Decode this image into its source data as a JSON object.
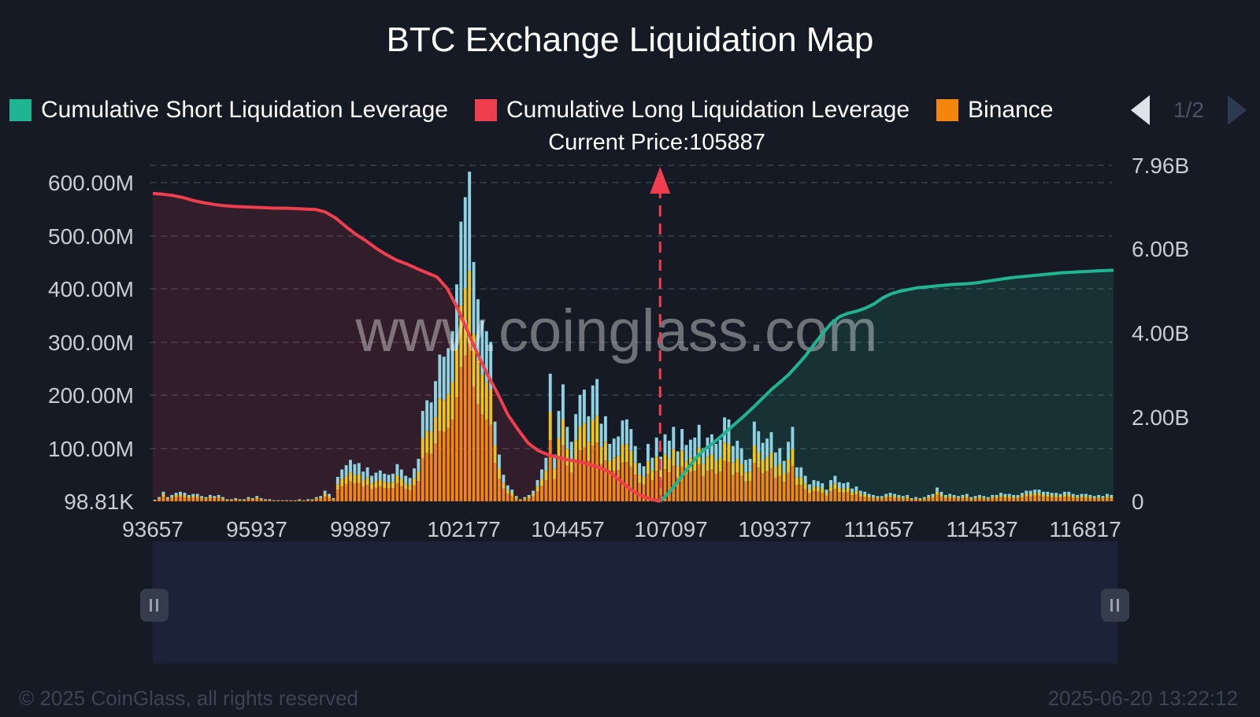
{
  "header": {
    "title": "BTC Exchange Liquidation Map"
  },
  "legend": {
    "items": [
      {
        "label": "Cumulative Short Liquidation Leverage",
        "color": "#20b592",
        "icon": "square-swatch"
      },
      {
        "label": "Cumulative Long Liquidation Leverage",
        "color": "#ef3e4e",
        "icon": "square-swatch"
      },
      {
        "label": "Binance",
        "color": "#f4850d",
        "icon": "square-swatch"
      }
    ],
    "page": "1/2"
  },
  "watermark": "www.coinglass.com",
  "footer": {
    "copyright": "© 2025 CoinGlass, all rights reserved",
    "timestamp": "2025-06-20 13:22:12"
  },
  "chart_data": {
    "type": "bar",
    "title": "BTC Exchange Liquidation Map",
    "current_price": 105887,
    "current_price_label": "Current Price:105887",
    "x_range": [
      93657,
      116817
    ],
    "x_ticks": [
      "93657",
      "95937",
      "99897",
      "102177",
      "104457",
      "107097",
      "109377",
      "111657",
      "114537",
      "116817"
    ],
    "y_left_ticks": [
      "98.81K",
      "100.00M",
      "200.00M",
      "300.00M",
      "400.00M",
      "500.00M",
      "600.00M"
    ],
    "y_left_range": [
      0,
      630000000
    ],
    "y_right_ticks": [
      "0",
      "2.00B",
      "4.00B",
      "6.00B",
      "7.96B"
    ],
    "y_right_range": [
      0,
      7960000000
    ],
    "colors": {
      "short": "#20b592",
      "long": "#ef3e4e",
      "binance": "#f4850d",
      "okx": "#f0c419",
      "bybit": "#8fd3e3"
    },
    "bars_total_M": [
      3,
      8,
      18,
      8,
      12,
      16,
      18,
      16,
      12,
      14,
      14,
      10,
      8,
      12,
      10,
      12,
      8,
      4,
      4,
      6,
      4,
      4,
      8,
      6,
      10,
      6,
      4,
      4,
      2,
      2,
      2,
      2,
      2,
      2,
      4,
      2,
      4,
      4,
      8,
      10,
      20,
      14,
      6,
      46,
      60,
      68,
      78,
      70,
      72,
      56,
      64,
      48,
      54,
      58,
      52,
      50,
      52,
      70,
      60,
      48,
      44,
      62,
      80,
      170,
      190,
      186,
      226,
      276,
      272,
      288,
      320,
      408,
      526,
      572,
      620,
      450,
      380,
      340,
      320,
      300,
      150,
      88,
      50,
      30,
      22,
      10,
      4,
      8,
      12,
      20,
      40,
      60,
      82,
      240,
      88,
      170,
      220,
      140,
      112,
      164,
      200,
      210,
      160,
      218,
      230,
      146,
      160,
      108,
      118,
      122,
      152,
      154,
      136,
      104,
      72,
      66,
      108,
      82,
      120,
      84,
      126,
      114,
      140,
      94,
      136,
      106,
      116,
      120,
      144,
      100,
      120,
      126,
      108,
      116,
      158,
      154,
      104,
      114,
      100,
      78,
      80,
      150,
      132,
      110,
      118,
      130,
      92,
      100,
      76,
      112,
      140,
      64,
      64,
      48,
      32,
      40,
      38,
      34,
      22,
      40,
      48,
      36,
      34,
      36,
      24,
      28,
      20,
      18,
      14,
      12,
      10,
      10,
      14,
      16,
      14,
      12,
      10,
      12,
      6,
      8,
      6,
      8,
      12,
      14,
      26,
      18,
      12,
      14,
      12,
      10,
      12,
      14,
      8,
      10,
      12,
      10,
      8,
      12,
      12,
      16,
      14,
      14,
      12,
      12,
      16,
      20,
      20,
      22,
      22,
      18,
      18,
      16,
      16,
      14,
      18,
      18,
      14,
      12,
      14,
      14,
      12,
      10,
      12,
      10,
      14,
      12
    ],
    "long_cumulative_B": [
      7.3,
      7.28,
      7.25,
      7.2,
      7.13,
      7.08,
      7.04,
      7.01,
      6.99,
      6.98,
      6.97,
      6.96,
      6.95,
      6.95,
      6.94,
      6.93,
      6.92,
      6.86,
      6.72,
      6.52,
      6.33,
      6.18,
      6.0,
      5.85,
      5.72,
      5.63,
      5.52,
      5.42,
      5.32,
      5.05,
      4.6,
      4.05,
      3.5,
      3.0,
      2.55,
      2.05,
      1.7,
      1.38,
      1.2,
      1.1,
      1.04,
      0.98,
      0.94,
      0.88,
      0.8,
      0.7,
      0.5,
      0.3,
      0.15,
      0.06,
      0.0
    ],
    "short_cumulative_B": [
      0.0,
      0.2,
      0.45,
      0.72,
      0.98,
      1.2,
      1.35,
      1.52,
      1.7,
      1.88,
      2.06,
      2.25,
      2.45,
      2.65,
      2.82,
      3.0,
      3.22,
      3.45,
      3.72,
      3.98,
      4.22,
      4.38,
      4.46,
      4.51,
      4.58,
      4.68,
      4.82,
      4.92,
      4.98,
      5.02,
      5.06,
      5.08,
      5.1,
      5.12,
      5.14,
      5.15,
      5.16,
      5.18,
      5.21,
      5.24,
      5.27,
      5.3,
      5.32,
      5.34,
      5.36,
      5.38,
      5.4,
      5.42,
      5.43,
      5.44,
      5.45,
      5.46,
      5.47,
      5.48
    ]
  }
}
